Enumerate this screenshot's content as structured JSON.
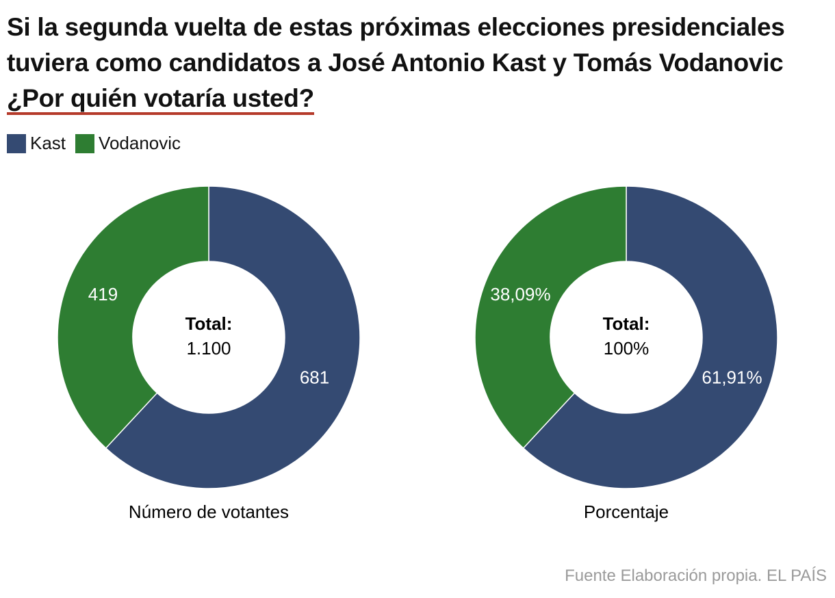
{
  "title": "Si la segunda vuelta de estas próximas elecciones presidenciales tuviera como candidatos a José Antonio Kast y Tomás Vodanovic",
  "title_emphasis": "¿Por quién votaría usted?",
  "source": "Fuente Elaboración propia. EL PAÍS",
  "chart_data": [
    {
      "type": "pie",
      "donut": true,
      "label": "Número de votantes",
      "categories": [
        "Kast",
        "Vodanovic"
      ],
      "colors": [
        "#344a72",
        "#2e7d32"
      ],
      "values": [
        681,
        419
      ],
      "center_text": [
        "Total:",
        "1.100"
      ]
    },
    {
      "type": "pie",
      "donut": true,
      "label": "Porcentaje",
      "categories": [
        "Kast",
        "Vodanovic"
      ],
      "colors": [
        "#344a72",
        "#2e7d32"
      ],
      "values": [
        61.91,
        38.09
      ],
      "value_labels": [
        "61,91%",
        "38,09%"
      ],
      "center_text": [
        "Total:",
        "100%"
      ]
    }
  ]
}
